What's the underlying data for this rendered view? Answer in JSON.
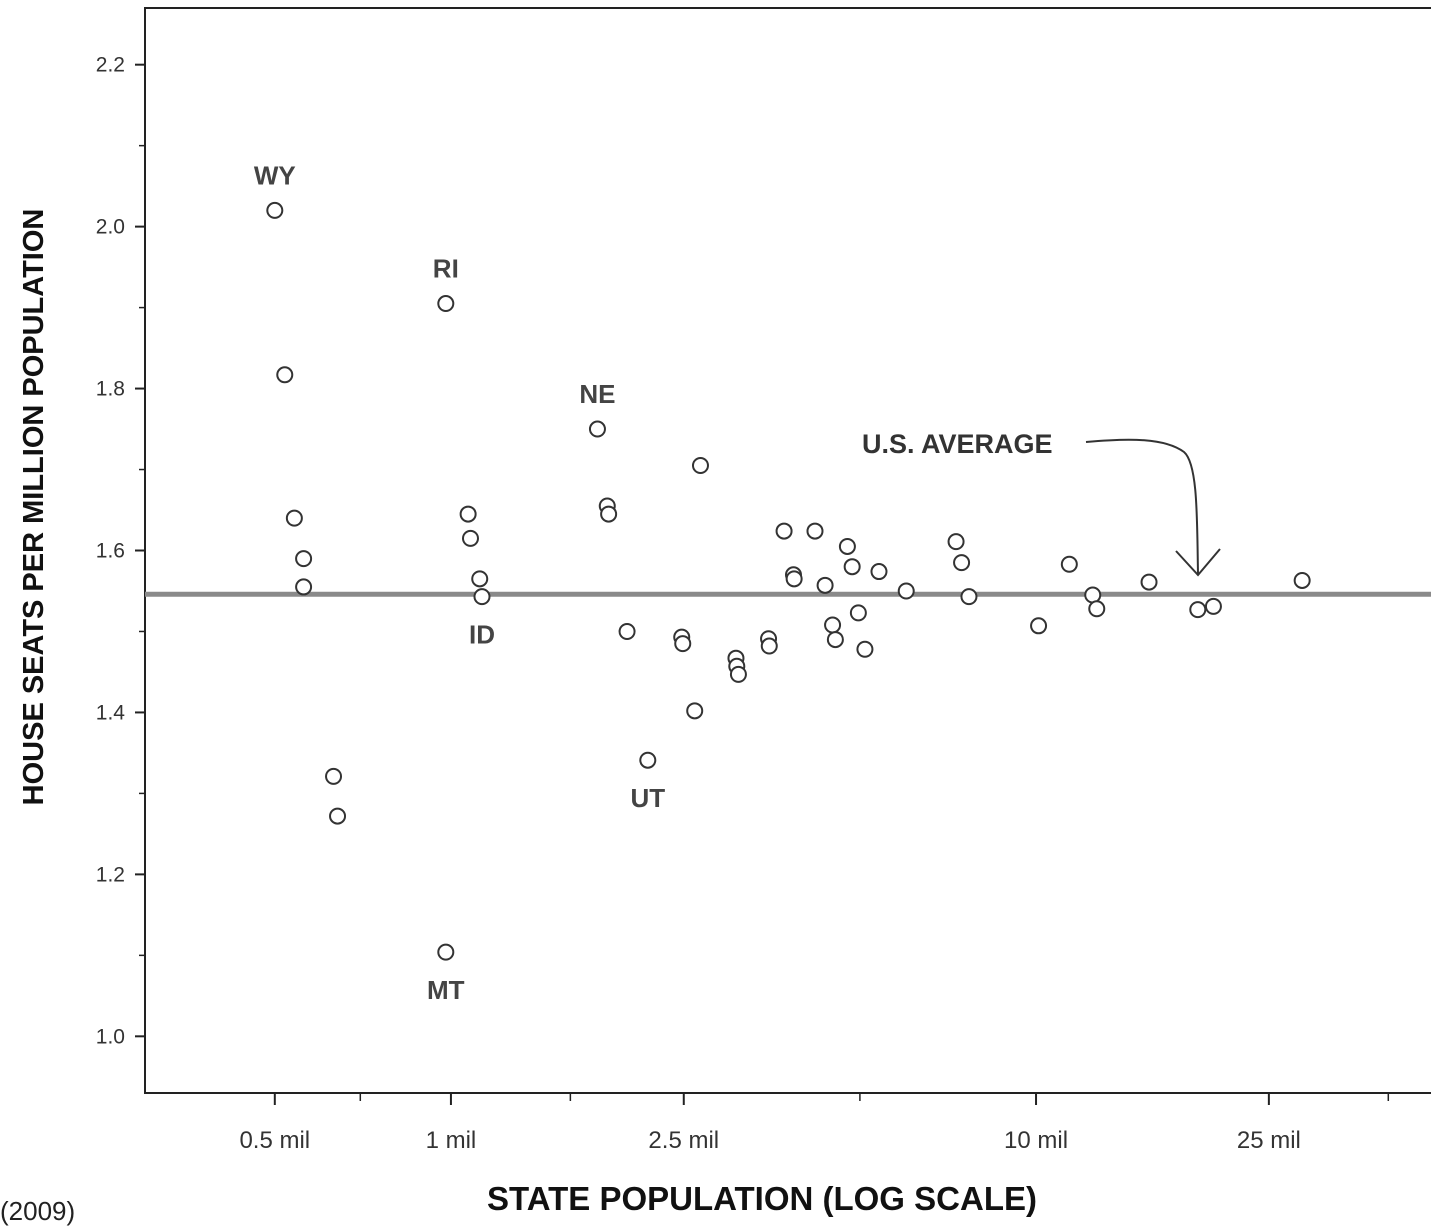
{
  "caption": "(2009)",
  "chart_data": {
    "type": "scatter",
    "title": "",
    "xlabel": "STATE POPULATION (LOG SCALE)",
    "ylabel": "HOUSE SEATS PER MILLION POPULATION",
    "x_scale": "log",
    "x_unit": "million",
    "xlim": [
      0.3,
      50
    ],
    "ylim": [
      0.93,
      2.27
    ],
    "x_ticks": [
      {
        "value": 0.5,
        "label": "0.5 mil"
      },
      {
        "value": 1,
        "label": "1 mil"
      },
      {
        "value": 2.5,
        "label": "2.5 mil"
      },
      {
        "value": 10,
        "label": "10 mil"
      },
      {
        "value": 25,
        "label": "25 mil"
      }
    ],
    "y_ticks": [
      {
        "value": 1.0,
        "label": "1.0"
      },
      {
        "value": 1.2,
        "label": "1.2"
      },
      {
        "value": 1.4,
        "label": "1.4"
      },
      {
        "value": 1.6,
        "label": "1.6"
      },
      {
        "value": 1.8,
        "label": "1.8"
      },
      {
        "value": 2.0,
        "label": "2.0"
      },
      {
        "value": 2.2,
        "label": "2.2"
      }
    ],
    "grid": false,
    "points": [
      {
        "x": 0.5,
        "y": 2.02,
        "label": "WY"
      },
      {
        "x": 0.52,
        "y": 1.817
      },
      {
        "x": 0.54,
        "y": 1.64
      },
      {
        "x": 0.56,
        "y": 1.59
      },
      {
        "x": 0.56,
        "y": 1.555
      },
      {
        "x": 0.63,
        "y": 1.321
      },
      {
        "x": 0.64,
        "y": 1.272
      },
      {
        "x": 0.98,
        "y": 1.104,
        "label": "MT"
      },
      {
        "x": 0.98,
        "y": 1.905,
        "label": "RI"
      },
      {
        "x": 1.07,
        "y": 1.645
      },
      {
        "x": 1.08,
        "y": 1.615
      },
      {
        "x": 1.12,
        "y": 1.565
      },
      {
        "x": 1.13,
        "y": 1.543,
        "label": "ID"
      },
      {
        "x": 1.78,
        "y": 1.75,
        "label": "NE"
      },
      {
        "x": 1.85,
        "y": 1.655
      },
      {
        "x": 1.86,
        "y": 1.645
      },
      {
        "x": 2.0,
        "y": 1.5
      },
      {
        "x": 2.17,
        "y": 1.341,
        "label": "UT"
      },
      {
        "x": 2.48,
        "y": 1.493
      },
      {
        "x": 2.49,
        "y": 1.485
      },
      {
        "x": 2.61,
        "y": 1.402
      },
      {
        "x": 2.67,
        "y": 1.705
      },
      {
        "x": 3.07,
        "y": 1.467
      },
      {
        "x": 3.08,
        "y": 1.457
      },
      {
        "x": 3.1,
        "y": 1.447
      },
      {
        "x": 3.49,
        "y": 1.491
      },
      {
        "x": 3.5,
        "y": 1.482
      },
      {
        "x": 3.71,
        "y": 1.624
      },
      {
        "x": 3.85,
        "y": 1.57
      },
      {
        "x": 3.86,
        "y": 1.565
      },
      {
        "x": 4.19,
        "y": 1.624
      },
      {
        "x": 4.36,
        "y": 1.557
      },
      {
        "x": 4.49,
        "y": 1.508
      },
      {
        "x": 4.54,
        "y": 1.49
      },
      {
        "x": 4.76,
        "y": 1.605
      },
      {
        "x": 4.85,
        "y": 1.58
      },
      {
        "x": 4.97,
        "y": 1.523
      },
      {
        "x": 5.1,
        "y": 1.478
      },
      {
        "x": 5.39,
        "y": 1.574
      },
      {
        "x": 6.0,
        "y": 1.55
      },
      {
        "x": 7.3,
        "y": 1.611
      },
      {
        "x": 7.46,
        "y": 1.585
      },
      {
        "x": 7.68,
        "y": 1.543
      },
      {
        "x": 10.1,
        "y": 1.507
      },
      {
        "x": 11.4,
        "y": 1.583
      },
      {
        "x": 12.5,
        "y": 1.545
      },
      {
        "x": 12.7,
        "y": 1.528
      },
      {
        "x": 15.6,
        "y": 1.561
      },
      {
        "x": 18.9,
        "y": 1.527
      },
      {
        "x": 20.1,
        "y": 1.531
      },
      {
        "x": 28.5,
        "y": 1.563
      }
    ],
    "reference_line": {
      "y": 1.546,
      "label": "U.S. AVERAGE"
    }
  }
}
